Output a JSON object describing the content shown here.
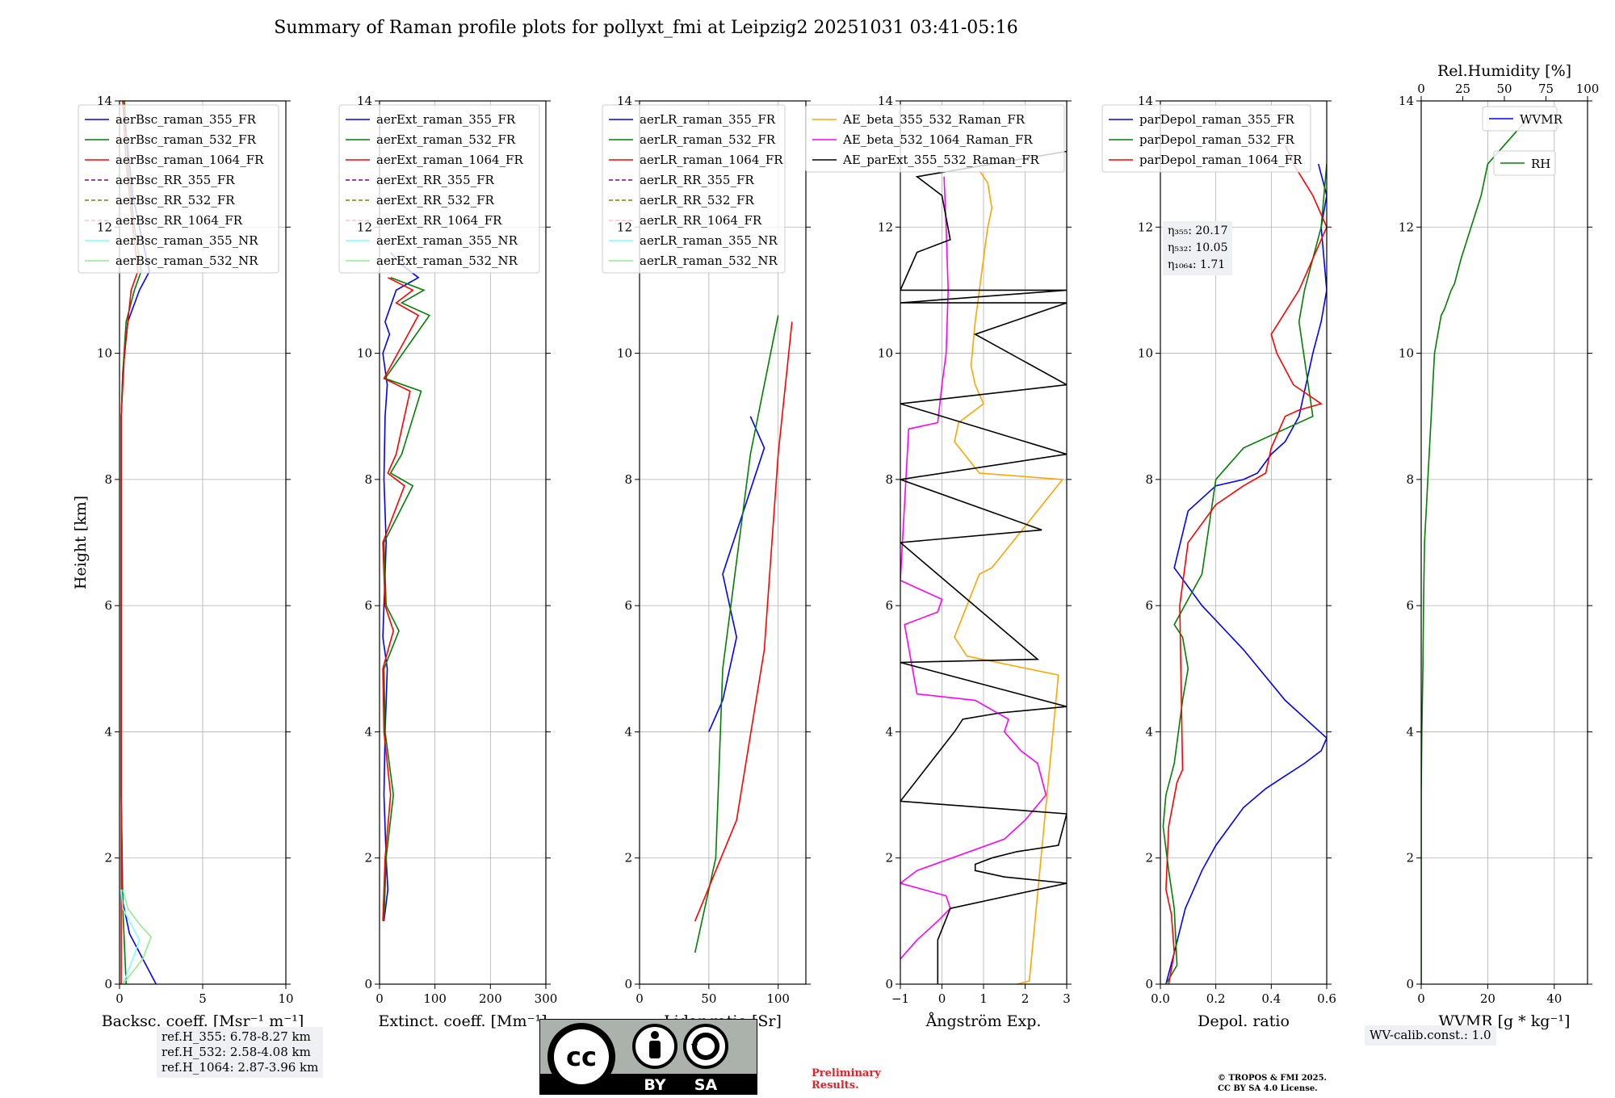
{
  "title": "Summary of Raman profile plots for pollyxt_fmi at Leipzig2 20251031 03:41-05:16",
  "colors": {
    "blue": "#0000ff",
    "green": "#008000",
    "red": "#ff0000",
    "purple": "#800080",
    "olive": "#808000",
    "pink": "#ffc0cb",
    "cyan": "#7fffff",
    "lightgreen": "#90ee90",
    "orange": "#ffa500",
    "magenta": "#ff00ff",
    "black": "#000000",
    "grid": "#b0b0b0",
    "infobox": "#eef0f4",
    "prelim": "#e8202a"
  },
  "info": {
    "ref_lines": [
      "ref.H_355: 6.78-8.27 km",
      "ref.H_532: 2.58-4.08 km",
      "ref.H_1064: 2.87-3.96 km"
    ],
    "eta_lines": [
      "η₃₅₅: 20.17",
      "η₅₃₂: 10.05",
      "η₁₀₆₄: 1.71"
    ],
    "wv_calib": "WV-calib.const.: 1.0",
    "preliminary": [
      "Preliminary",
      "Results."
    ],
    "copyright": [
      "© TROPOS & FMI 2025.",
      "CC BY SA 4.0 License."
    ],
    "license_logo": [
      "cc-icon",
      "by-icon",
      "sa-icon"
    ],
    "license_text": [
      "BY",
      "SA"
    ]
  },
  "chart_data": [
    {
      "type": "line",
      "title": "",
      "xlabel": "Backsc. coeff. [Msr⁻¹ m⁻¹]",
      "ylabel": "Height [km]",
      "xlim": [
        0,
        10
      ],
      "ylim": [
        0,
        14
      ],
      "xticks": [
        0,
        5,
        10
      ],
      "yticks": [
        0,
        2,
        4,
        6,
        8,
        10,
        12,
        14
      ],
      "grid": true,
      "legend": "top-left",
      "series": [
        {
          "name": "aerBsc_raman_355_FR",
          "color": "blue",
          "style": "solid",
          "x": [
            2.2,
            0.6,
            0.2,
            0.1,
            0.1,
            0.1,
            0.1,
            0.1,
            0.1,
            0.2,
            0.5,
            1.2,
            1.8,
            1.2,
            0.8,
            0.4,
            0.2
          ],
          "y": [
            0,
            0.8,
            1.3,
            3,
            5,
            7,
            8,
            8.5,
            9,
            9.7,
            10.5,
            11,
            11.3,
            12,
            12.5,
            13.5,
            14
          ]
        },
        {
          "name": "aerBsc_raman_532_FR",
          "color": "green",
          "style": "solid",
          "x": [
            0.4,
            0.3,
            0.2,
            0.1,
            0.1,
            0.1,
            0.1,
            0.1,
            0.1,
            0.2,
            0.4,
            0.9,
            1.3,
            0.9,
            0.5,
            0.3
          ],
          "y": [
            0,
            0.6,
            1.2,
            3,
            5,
            7,
            8,
            8.5,
            9,
            9.7,
            10.5,
            11,
            11.3,
            12,
            13,
            14
          ]
        },
        {
          "name": "aerBsc_raman_1064_FR",
          "color": "red",
          "style": "solid",
          "x": [
            0.1,
            0.1,
            0.1,
            0.1,
            0.1,
            0.1,
            0.1,
            0.1,
            0.3,
            0.7,
            1.1,
            0.8,
            0.4,
            0.2
          ],
          "y": [
            0,
            1,
            3,
            5,
            7,
            8,
            8.5,
            9,
            10,
            11,
            11.3,
            12,
            13,
            14
          ]
        },
        {
          "name": "aerBsc_RR_355_FR",
          "color": "purple",
          "style": "dashed",
          "x": [],
          "y": []
        },
        {
          "name": "aerBsc_RR_532_FR",
          "color": "olive",
          "style": "dashed",
          "x": [],
          "y": []
        },
        {
          "name": "aerBsc_RR_1064_FR",
          "color": "pink",
          "style": "dashed",
          "x": [],
          "y": []
        },
        {
          "name": "aerBsc_raman_355_NR",
          "color": "cyan",
          "style": "solid",
          "x": [
            0.2,
            0.8,
            1.2,
            0.8,
            0.2,
            0.1
          ],
          "y": [
            0,
            0.4,
            0.7,
            0.9,
            1.2,
            1.5
          ]
        },
        {
          "name": "aerBsc_raman_532_NR",
          "color": "lightgreen",
          "style": "solid",
          "x": [
            0.2,
            1.4,
            1.9,
            1.2,
            0.5,
            0.2
          ],
          "y": [
            0,
            0.4,
            0.75,
            0.95,
            1.2,
            1.5
          ]
        }
      ]
    },
    {
      "type": "line",
      "title": "",
      "xlabel": "Extinct. coeff. [Mm⁻¹]",
      "ylabel": "",
      "xlim": [
        0,
        300
      ],
      "ylim": [
        0,
        14
      ],
      "xticks": [
        0,
        100,
        200,
        300
      ],
      "yticks": [
        0,
        2,
        4,
        6,
        8,
        10,
        12,
        14
      ],
      "grid": true,
      "legend": "top-left",
      "series": [
        {
          "name": "aerExt_raman_355_FR",
          "color": "blue",
          "style": "solid",
          "x": [
            8,
            15,
            12,
            8,
            10,
            14,
            6,
            10,
            12,
            8,
            10,
            14,
            6,
            18,
            10,
            30,
            70,
            40,
            20
          ],
          "y": [
            1,
            1.5,
            2,
            3,
            4,
            5,
            5.5,
            6.5,
            7,
            8,
            9,
            9.5,
            10,
            10.3,
            10.5,
            11,
            11.2,
            11.4,
            11.6
          ]
        },
        {
          "name": "aerExt_raman_532_FR",
          "color": "green",
          "style": "solid",
          "x": [
            8,
            12,
            25,
            10,
            8,
            35,
            12,
            8,
            60,
            20,
            40,
            75,
            10,
            90,
            40,
            80,
            20
          ],
          "y": [
            1,
            2,
            3,
            4,
            5,
            5.6,
            6,
            7,
            7.9,
            8.1,
            8.4,
            9.4,
            9.6,
            10.6,
            10.8,
            11,
            11.2
          ]
        },
        {
          "name": "aerExt_raman_1064_FR",
          "color": "red",
          "style": "solid",
          "x": [
            6,
            10,
            20,
            8,
            6,
            25,
            10,
            6,
            45,
            15,
            30,
            55,
            8,
            70,
            30,
            60,
            15
          ],
          "y": [
            1,
            2,
            3,
            4,
            5,
            5.6,
            6,
            7,
            7.9,
            8.1,
            8.4,
            9.4,
            9.6,
            10.6,
            10.8,
            11,
            11.2
          ]
        },
        {
          "name": "aerExt_RR_355_FR",
          "color": "purple",
          "style": "dashed",
          "x": [],
          "y": []
        },
        {
          "name": "aerExt_RR_532_FR",
          "color": "olive",
          "style": "dashed",
          "x": [],
          "y": []
        },
        {
          "name": "aerExt_RR_1064_FR",
          "color": "pink",
          "style": "dashed",
          "x": [],
          "y": []
        },
        {
          "name": "aerExt_raman_355_NR",
          "color": "cyan",
          "style": "solid",
          "x": [],
          "y": []
        },
        {
          "name": "aerExt_raman_532_NR",
          "color": "lightgreen",
          "style": "solid",
          "x": [],
          "y": []
        }
      ]
    },
    {
      "type": "line",
      "title": "",
      "xlabel": "Lidar ratio [Sr]",
      "ylabel": "",
      "xlim": [
        0,
        120
      ],
      "ylim": [
        0,
        14
      ],
      "xticks": [
        0,
        50,
        100
      ],
      "yticks": [
        0,
        2,
        4,
        6,
        8,
        10,
        12,
        14
      ],
      "grid": true,
      "legend": "top-left",
      "series": [
        {
          "name": "aerLR_raman_355_FR",
          "color": "blue",
          "style": "solid",
          "x": [
            50,
            60,
            65,
            70,
            60,
            75,
            90,
            80
          ],
          "y": [
            4,
            4.5,
            5,
            5.5,
            6.5,
            7.5,
            8.5,
            9
          ]
        },
        {
          "name": "aerLR_raman_532_FR",
          "color": "green",
          "style": "solid",
          "x": [
            40,
            55,
            60,
            80,
            100
          ],
          "y": [
            0.5,
            2,
            5,
            8.4,
            10.6
          ]
        },
        {
          "name": "aerLR_raman_1064_FR",
          "color": "red",
          "style": "solid",
          "x": [
            40,
            70,
            90,
            100,
            110
          ],
          "y": [
            1,
            2.6,
            5.3,
            8.4,
            10.5
          ]
        },
        {
          "name": "aerLR_RR_355_FR",
          "color": "purple",
          "style": "dashed",
          "x": [],
          "y": []
        },
        {
          "name": "aerLR_RR_532_FR",
          "color": "olive",
          "style": "dashed",
          "x": [],
          "y": []
        },
        {
          "name": "aerLR_RR_1064_FR",
          "color": "pink",
          "style": "dashed",
          "x": [],
          "y": []
        },
        {
          "name": "aerLR_raman_355_NR",
          "color": "cyan",
          "style": "solid",
          "x": [],
          "y": []
        },
        {
          "name": "aerLR_raman_532_NR",
          "color": "lightgreen",
          "style": "solid",
          "x": [],
          "y": []
        }
      ]
    },
    {
      "type": "line",
      "title": "",
      "xlabel": "Ångström Exp.",
      "ylabel": "",
      "xlim": [
        -1,
        3
      ],
      "ylim": [
        0,
        14
      ],
      "xticks": [
        -1,
        0,
        1,
        2,
        3
      ],
      "yticks": [
        0,
        2,
        4,
        6,
        8,
        10,
        12,
        14
      ],
      "grid": true,
      "legend": "top-right",
      "series": [
        {
          "name": "AE_beta_355_532_Raman_FR",
          "color": "orange",
          "style": "solid",
          "x": [
            1.8,
            2.1,
            2.8,
            0.6,
            0.3,
            0.9,
            1.2,
            2.9,
            0.9,
            0.3,
            0.4,
            1.0,
            0.8,
            0.7,
            0.8,
            1.0,
            1.1,
            1.2,
            1.1,
            0.9
          ],
          "y": [
            0,
            0.05,
            4.9,
            5.2,
            5.5,
            6.5,
            6.6,
            8.0,
            8.1,
            8.6,
            8.9,
            9.2,
            9.5,
            9.8,
            10.5,
            11.5,
            12,
            12.3,
            12.7,
            12.9
          ]
        },
        {
          "name": "AE_beta_532_1064_Raman_FR",
          "color": "magenta",
          "style": "solid",
          "x": [
            -1,
            -0.6,
            -0.1,
            0.2,
            0.1,
            -1,
            -0.6,
            1.5,
            2.0,
            2.5,
            2.3,
            1.9,
            1.5,
            1.6,
            0.8,
            -0.6,
            -0.9,
            -0.1,
            0,
            -1,
            -0.8,
            -0.1,
            0,
            0.1,
            0.15,
            0.1,
            0.05
          ],
          "y": [
            0.4,
            0.7,
            1.0,
            1.2,
            1.4,
            1.6,
            1.8,
            2.3,
            2.6,
            3.0,
            3.5,
            3.7,
            4.0,
            4.2,
            4.5,
            4.6,
            5.7,
            5.9,
            6.1,
            6.4,
            8.8,
            8.9,
            9.5,
            10,
            11,
            12,
            12.8
          ]
        },
        {
          "name": "AE_parExt_355_532_Raman_FR",
          "color": "black",
          "style": "solid",
          "x": [
            -0.1,
            -0.1,
            0.2,
            3,
            1.5,
            0.8,
            0.8,
            1.2,
            1.8,
            2.8,
            3.0,
            -1,
            0.3,
            0.5,
            1.4,
            3,
            -1,
            2.3,
            -1,
            2.4,
            -1,
            3,
            -1,
            3,
            0.8,
            3,
            -1,
            3,
            -1,
            -0.6,
            0.2,
            0.0,
            -0.6,
            3
          ],
          "y": [
            0,
            0.7,
            1.2,
            1.6,
            1.7,
            1.8,
            1.9,
            2.0,
            2.1,
            2.2,
            2.7,
            2.9,
            4.0,
            4.2,
            4.3,
            4.4,
            5.1,
            5.15,
            7.0,
            7.2,
            8.0,
            8.4,
            9.2,
            9.5,
            10.3,
            10.8,
            10.8,
            11.0,
            11.0,
            11.6,
            11.8,
            12.5,
            12.8,
            13.2
          ]
        }
      ]
    },
    {
      "type": "line",
      "title": "",
      "xlabel": "Depol. ratio",
      "ylabel": "",
      "xlim": [
        0,
        0.6
      ],
      "ylim": [
        0,
        14
      ],
      "xticks": [
        0.0,
        0.2,
        0.4,
        0.6
      ],
      "yticks": [
        0,
        2,
        4,
        6,
        8,
        10,
        12,
        14
      ],
      "grid": true,
      "legend": "top-left",
      "series": [
        {
          "name": "parDepol_raman_355_FR",
          "color": "blue",
          "style": "solid",
          "x": [
            0.02,
            0.05,
            0.09,
            0.15,
            0.2,
            0.25,
            0.3,
            0.38,
            0.45,
            0.52,
            0.58,
            0.6,
            0.45,
            0.3,
            0.15,
            0.05,
            0.1,
            0.2,
            0.3,
            0.35,
            0.4,
            0.45,
            0.5,
            0.55,
            0.58,
            0.6,
            0.58,
            0.6,
            0.57
          ],
          "y": [
            0,
            0.5,
            1.2,
            1.8,
            2.2,
            2.5,
            2.8,
            3.1,
            3.3,
            3.5,
            3.7,
            3.9,
            4.5,
            5.3,
            6.0,
            6.6,
            7.5,
            7.9,
            8.0,
            8.1,
            8.4,
            8.6,
            9.0,
            10.0,
            10.5,
            11.0,
            12.0,
            12.5,
            13.0
          ]
        },
        {
          "name": "parDepol_raman_532_FR",
          "color": "green",
          "style": "solid",
          "x": [
            0.02,
            0.06,
            0.05,
            0.03,
            0.01,
            0.02,
            0.05,
            0.08,
            0.1,
            0.08,
            0.05,
            0.15,
            0.2,
            0.3,
            0.55,
            0.5,
            0.52,
            0.55,
            0.58,
            0.6
          ],
          "y": [
            0,
            0.3,
            1.2,
            1.8,
            2.5,
            3.0,
            3.5,
            4.5,
            5.0,
            5.5,
            5.7,
            6.5,
            8.0,
            8.5,
            9.0,
            10.5,
            11,
            11.5,
            12,
            13
          ]
        },
        {
          "name": "parDepol_raman_1064_FR",
          "color": "red",
          "style": "solid",
          "x": [
            0.03,
            0.05,
            0.04,
            0.02,
            0.03,
            0.06,
            0.08,
            0.07,
            0.1,
            0.2,
            0.3,
            0.38,
            0.4,
            0.45,
            0.5,
            0.58,
            0.48,
            0.42,
            0.4,
            0.5,
            0.55,
            0.6,
            0.55,
            0.48,
            0.45
          ],
          "y": [
            0,
            0.5,
            1.1,
            1.5,
            2.5,
            3.2,
            3.4,
            6.0,
            7.0,
            7.6,
            7.9,
            8.1,
            8.5,
            9.0,
            9.1,
            9.2,
            9.5,
            10.0,
            10.3,
            11.0,
            11.5,
            12.0,
            12.5,
            13.0,
            13.3
          ]
        }
      ]
    },
    {
      "type": "line",
      "title": "Rel.Humidity [%]",
      "xlabel": "WVMR [g * kg⁻¹]",
      "ylabel": "",
      "xlim": [
        0,
        50
      ],
      "ylim": [
        0,
        14
      ],
      "xticks": [
        0,
        20,
        40
      ],
      "yticks": [
        0,
        2,
        4,
        6,
        8,
        10,
        12,
        14
      ],
      "secondary_x": {
        "label": "Rel.Humidity [%]",
        "range": [
          0,
          100
        ],
        "ticks": [
          0,
          25,
          50,
          75,
          100
        ]
      },
      "grid": true,
      "legend": "top-right",
      "series": [
        {
          "name": "WVMR",
          "color": "blue",
          "style": "solid",
          "x": [],
          "y": []
        },
        {
          "name": "RH",
          "color": "green",
          "style": "solid",
          "x": [
            0,
            0,
            0.2,
            0.5,
            0.7,
            1.0,
            1.5,
            2.0,
            2.5,
            3.0,
            3.5,
            4.0,
            5.0,
            6.0,
            7.0,
            9.0,
            10,
            12,
            15,
            18,
            20,
            25,
            30,
            35
          ],
          "y": [
            0,
            3,
            4,
            5,
            6,
            7,
            7.5,
            8,
            8.5,
            9,
            9.5,
            10,
            10.3,
            10.6,
            10.7,
            11,
            11.1,
            11.5,
            12,
            12.5,
            13,
            13.3,
            13.6,
            13.8
          ]
        }
      ]
    }
  ]
}
